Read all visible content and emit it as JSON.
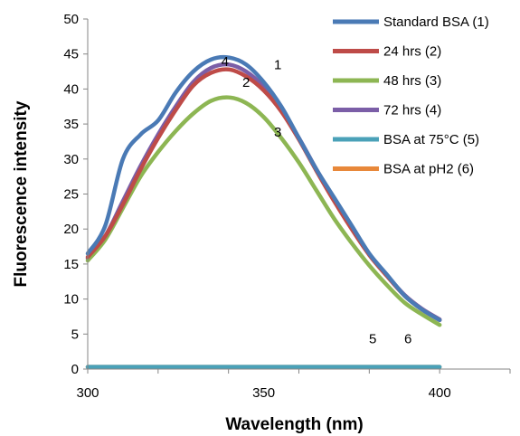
{
  "chart_data": {
    "type": "line",
    "xlabel": "Wavelength (nm)",
    "ylabel": "Fluorescence intensity",
    "xlim": [
      300,
      420
    ],
    "ylim": [
      0,
      50
    ],
    "x_ticks": [
      "300",
      "350",
      "400"
    ],
    "y_ticks": [
      "0",
      "5",
      "10",
      "15",
      "20",
      "25",
      "30",
      "35",
      "40",
      "45",
      "50"
    ],
    "grid": false,
    "legend_position": "right",
    "series": [
      {
        "name": "Standard BSA (1)",
        "color": "#4a7ab5",
        "x": [
          300,
          305,
          310,
          315,
          320,
          325,
          330,
          335,
          340,
          345,
          350,
          355,
          360,
          365,
          370,
          375,
          380,
          385,
          390,
          395,
          400
        ],
        "y": [
          16.5,
          20.5,
          30.0,
          33.5,
          35.5,
          39.5,
          42.5,
          44.2,
          44.5,
          43.5,
          41.0,
          37.5,
          33.0,
          28.5,
          24.5,
          20.5,
          16.5,
          13.5,
          10.5,
          8.5,
          7.0
        ]
      },
      {
        "name": "24 hrs (2)",
        "color": "#be4b48",
        "x": [
          300,
          305,
          310,
          315,
          320,
          325,
          330,
          335,
          340,
          345,
          350,
          355,
          360,
          365,
          370,
          375,
          380,
          385,
          390,
          395,
          400
        ],
        "y": [
          16.0,
          19.0,
          23.5,
          28.5,
          33.0,
          37.0,
          40.5,
          42.3,
          42.8,
          41.8,
          39.8,
          36.8,
          32.8,
          28.3,
          24.0,
          20.0,
          16.3,
          13.3,
          10.5,
          8.5,
          7.0
        ]
      },
      {
        "name": "48 hrs (3)",
        "color": "#8db653",
        "x": [
          300,
          305,
          310,
          315,
          320,
          325,
          330,
          335,
          340,
          345,
          350,
          355,
          360,
          365,
          370,
          375,
          380,
          385,
          390,
          395,
          400
        ],
        "y": [
          15.5,
          18.5,
          23.0,
          27.5,
          31.0,
          34.0,
          36.5,
          38.3,
          38.8,
          38.0,
          36.0,
          33.0,
          29.5,
          25.5,
          21.5,
          18.0,
          14.8,
          12.0,
          9.5,
          7.8,
          6.3
        ]
      },
      {
        "name": "72 hrs (4)",
        "color": "#7b5ea7",
        "x": [
          300,
          305,
          310,
          315,
          320,
          325,
          330,
          335,
          340,
          345,
          350,
          355,
          360,
          365,
          370,
          375,
          380,
          385,
          390,
          395,
          400
        ],
        "y": [
          15.8,
          19.0,
          24.0,
          29.0,
          33.5,
          37.5,
          41.0,
          43.0,
          43.5,
          42.5,
          40.3,
          37.0,
          33.0,
          28.5,
          24.2,
          20.2,
          16.4,
          13.4,
          10.6,
          8.6,
          7.1
        ]
      },
      {
        "name": "BSA at 75°C (5)",
        "color": "#4aa1b8",
        "x": [
          300,
          400
        ],
        "y": [
          0.3,
          0.3
        ]
      },
      {
        "name": "BSA at pH2 (6)",
        "color": "#e8883a",
        "x": [
          300,
          400
        ],
        "y": [
          0.3,
          0.3
        ]
      }
    ],
    "annotations": [
      {
        "text": "4",
        "x": 339,
        "y": 43.3
      },
      {
        "text": "1",
        "x": 354,
        "y": 42.8
      },
      {
        "text": "2",
        "x": 345,
        "y": 40.3
      },
      {
        "text": "3",
        "x": 354,
        "y": 33.2
      },
      {
        "text": "5",
        "x": 381,
        "y": 3.7
      },
      {
        "text": "6",
        "x": 391,
        "y": 3.7
      }
    ]
  }
}
